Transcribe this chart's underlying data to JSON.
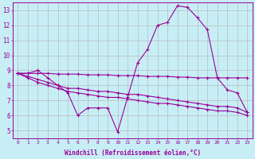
{
  "xlabel": "Windchill (Refroidissement éolien,°C)",
  "x": [
    0,
    1,
    2,
    3,
    4,
    5,
    6,
    7,
    8,
    9,
    10,
    11,
    12,
    13,
    14,
    15,
    16,
    17,
    18,
    19,
    20,
    21,
    22,
    23
  ],
  "line1": [
    8.8,
    8.8,
    9.0,
    8.5,
    8.0,
    7.5,
    6.0,
    6.5,
    6.5,
    6.5,
    4.9,
    7.2,
    9.5,
    10.4,
    12.0,
    12.2,
    13.3,
    13.2,
    12.5,
    11.7,
    8.5,
    7.7,
    7.5,
    6.2
  ],
  "line2": [
    8.8,
    8.8,
    8.8,
    8.8,
    8.75,
    8.75,
    8.75,
    8.7,
    8.7,
    8.7,
    8.65,
    8.65,
    8.65,
    8.6,
    8.6,
    8.6,
    8.55,
    8.55,
    8.5,
    8.5,
    8.5,
    8.5,
    8.5,
    8.5
  ],
  "line3": [
    8.8,
    8.6,
    8.4,
    8.2,
    8.0,
    7.8,
    7.8,
    7.7,
    7.6,
    7.6,
    7.5,
    7.4,
    7.4,
    7.3,
    7.2,
    7.1,
    7.0,
    6.9,
    6.8,
    6.7,
    6.6,
    6.6,
    6.5,
    6.2
  ],
  "line4": [
    8.8,
    8.5,
    8.2,
    8.0,
    7.8,
    7.6,
    7.5,
    7.4,
    7.3,
    7.2,
    7.2,
    7.1,
    7.0,
    6.9,
    6.8,
    6.8,
    6.7,
    6.6,
    6.5,
    6.4,
    6.3,
    6.3,
    6.2,
    6.0
  ],
  "line_color": "#990099",
  "bg_color": "#c8eef5",
  "grid_color": "#b0b0b0",
  "ylim": [
    4.5,
    13.5
  ],
  "xlim": [
    -0.5,
    23.5
  ],
  "yticks": [
    5,
    6,
    7,
    8,
    9,
    10,
    11,
    12,
    13
  ]
}
